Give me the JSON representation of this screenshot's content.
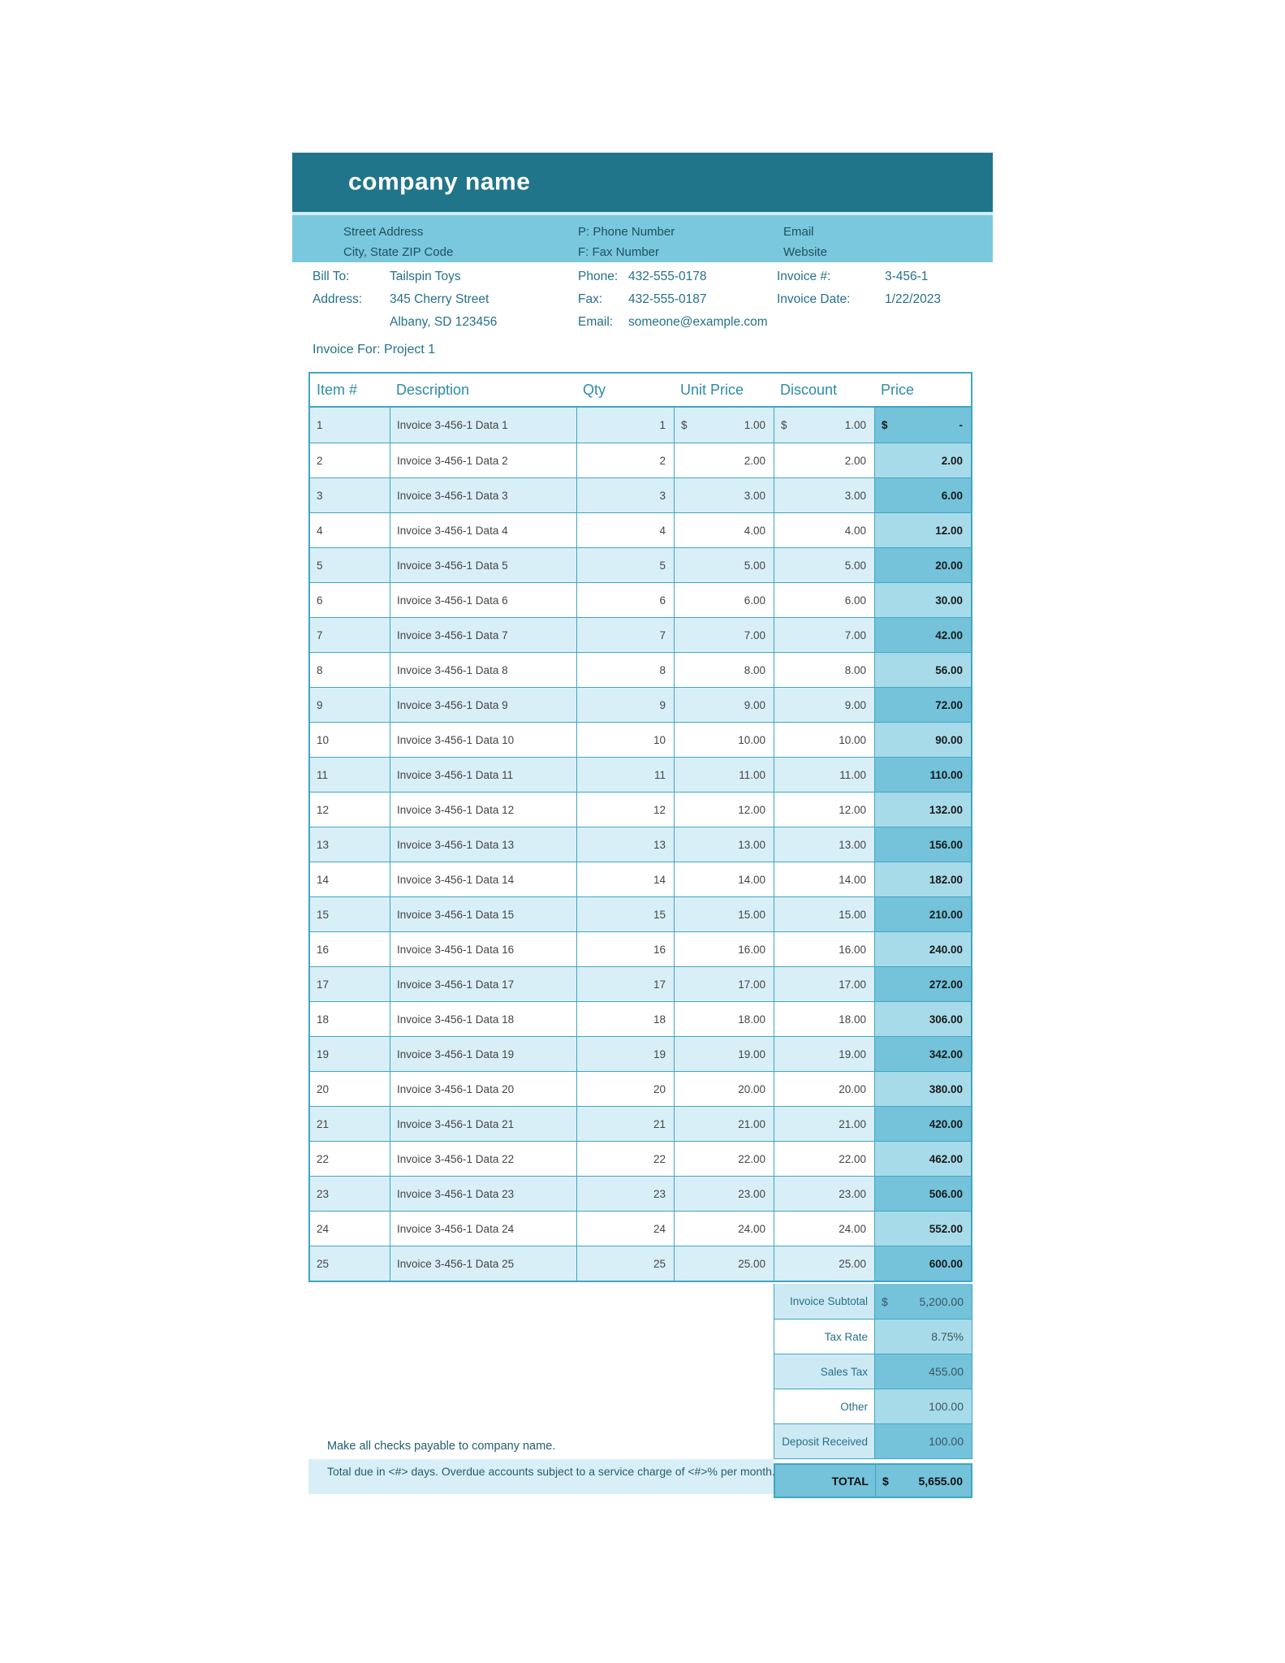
{
  "colors": {
    "header_teal": "#20758A",
    "subheader_blue": "#7AC8DD",
    "divider_light": "#CFECF4",
    "border_teal": "#41A5C4",
    "row_alt_blue": "#D9EFF7",
    "price_col_light": "#A8DBE9",
    "price_col_dark": "#74C3DB",
    "summary_label_light": "#CDEAF4",
    "label_text_teal": "#26718A",
    "column_header_teal": "#2E8CA8",
    "data_text_gray": "#454545",
    "footer_text_teal": "#235E6F"
  },
  "header": {
    "company_name": "company name"
  },
  "subheader": {
    "address_line1": "Street Address",
    "address_line2": "City, State ZIP Code",
    "phone_label": "P: Phone Number",
    "fax_label": "F: Fax Number",
    "email_label": "Email",
    "website_label": "Website"
  },
  "bill_to": {
    "bill_to_label": "Bill To:",
    "bill_to_value": "Tailspin Toys",
    "address_label": "Address:",
    "address_line1": "345 Cherry Street",
    "address_line2": "Albany, SD 123456",
    "phone_label": "Phone:",
    "phone_value": "432-555-0178",
    "fax_label": "Fax:",
    "fax_value": "432-555-0187",
    "email_label": "Email:",
    "email_value": "someone@example.com",
    "invoice_number_label": "Invoice #:",
    "invoice_number_value": "3-456-1",
    "invoice_date_label": "Invoice Date:",
    "invoice_date_value": "1/22/2023"
  },
  "invoice_for": "Invoice For: Project 1",
  "table": {
    "headers": {
      "item": "Item #",
      "description": "Description",
      "qty": "Qty",
      "unit_price": "Unit Price",
      "discount": "Discount",
      "price": "Price"
    },
    "items": [
      {
        "no": "1",
        "desc": "Invoice 3-456-1 Data 1",
        "qty": "1",
        "unit": "1.00",
        "disc": "1.00",
        "price": "-",
        "cur": "$"
      },
      {
        "no": "2",
        "desc": "Invoice 3-456-1 Data 2",
        "qty": "2",
        "unit": "2.00",
        "disc": "2.00",
        "price": "2.00",
        "cur": ""
      },
      {
        "no": "3",
        "desc": "Invoice 3-456-1 Data 3",
        "qty": "3",
        "unit": "3.00",
        "disc": "3.00",
        "price": "6.00",
        "cur": ""
      },
      {
        "no": "4",
        "desc": "Invoice 3-456-1 Data 4",
        "qty": "4",
        "unit": "4.00",
        "disc": "4.00",
        "price": "12.00",
        "cur": ""
      },
      {
        "no": "5",
        "desc": "Invoice 3-456-1 Data 5",
        "qty": "5",
        "unit": "5.00",
        "disc": "5.00",
        "price": "20.00",
        "cur": ""
      },
      {
        "no": "6",
        "desc": "Invoice 3-456-1 Data 6",
        "qty": "6",
        "unit": "6.00",
        "disc": "6.00",
        "price": "30.00",
        "cur": ""
      },
      {
        "no": "7",
        "desc": "Invoice 3-456-1 Data 7",
        "qty": "7",
        "unit": "7.00",
        "disc": "7.00",
        "price": "42.00",
        "cur": ""
      },
      {
        "no": "8",
        "desc": "Invoice 3-456-1 Data 8",
        "qty": "8",
        "unit": "8.00",
        "disc": "8.00",
        "price": "56.00",
        "cur": ""
      },
      {
        "no": "9",
        "desc": "Invoice 3-456-1 Data 9",
        "qty": "9",
        "unit": "9.00",
        "disc": "9.00",
        "price": "72.00",
        "cur": ""
      },
      {
        "no": "10",
        "desc": "Invoice 3-456-1 Data 10",
        "qty": "10",
        "unit": "10.00",
        "disc": "10.00",
        "price": "90.00",
        "cur": ""
      },
      {
        "no": "11",
        "desc": "Invoice 3-456-1 Data 11",
        "qty": "11",
        "unit": "11.00",
        "disc": "11.00",
        "price": "110.00",
        "cur": ""
      },
      {
        "no": "12",
        "desc": "Invoice 3-456-1 Data 12",
        "qty": "12",
        "unit": "12.00",
        "disc": "12.00",
        "price": "132.00",
        "cur": ""
      },
      {
        "no": "13",
        "desc": "Invoice 3-456-1 Data 13",
        "qty": "13",
        "unit": "13.00",
        "disc": "13.00",
        "price": "156.00",
        "cur": ""
      },
      {
        "no": "14",
        "desc": "Invoice 3-456-1 Data 14",
        "qty": "14",
        "unit": "14.00",
        "disc": "14.00",
        "price": "182.00",
        "cur": ""
      },
      {
        "no": "15",
        "desc": "Invoice 3-456-1 Data 15",
        "qty": "15",
        "unit": "15.00",
        "disc": "15.00",
        "price": "210.00",
        "cur": ""
      },
      {
        "no": "16",
        "desc": "Invoice 3-456-1 Data 16",
        "qty": "16",
        "unit": "16.00",
        "disc": "16.00",
        "price": "240.00",
        "cur": ""
      },
      {
        "no": "17",
        "desc": "Invoice 3-456-1 Data 17",
        "qty": "17",
        "unit": "17.00",
        "disc": "17.00",
        "price": "272.00",
        "cur": ""
      },
      {
        "no": "18",
        "desc": "Invoice 3-456-1 Data 18",
        "qty": "18",
        "unit": "18.00",
        "disc": "18.00",
        "price": "306.00",
        "cur": ""
      },
      {
        "no": "19",
        "desc": "Invoice 3-456-1 Data 19",
        "qty": "19",
        "unit": "19.00",
        "disc": "19.00",
        "price": "342.00",
        "cur": ""
      },
      {
        "no": "20",
        "desc": "Invoice 3-456-1 Data 20",
        "qty": "20",
        "unit": "20.00",
        "disc": "20.00",
        "price": "380.00",
        "cur": ""
      },
      {
        "no": "21",
        "desc": "Invoice 3-456-1 Data 21",
        "qty": "21",
        "unit": "21.00",
        "disc": "21.00",
        "price": "420.00",
        "cur": ""
      },
      {
        "no": "22",
        "desc": "Invoice 3-456-1 Data 22",
        "qty": "22",
        "unit": "22.00",
        "disc": "22.00",
        "price": "462.00",
        "cur": ""
      },
      {
        "no": "23",
        "desc": "Invoice 3-456-1 Data 23",
        "qty": "23",
        "unit": "23.00",
        "disc": "23.00",
        "price": "506.00",
        "cur": ""
      },
      {
        "no": "24",
        "desc": "Invoice 3-456-1 Data 24",
        "qty": "24",
        "unit": "24.00",
        "disc": "24.00",
        "price": "552.00",
        "cur": ""
      },
      {
        "no": "25",
        "desc": "Invoice 3-456-1 Data 25",
        "qty": "25",
        "unit": "25.00",
        "disc": "25.00",
        "price": "600.00",
        "cur": ""
      }
    ]
  },
  "summary": {
    "rows": [
      {
        "label": "Invoice Subtotal",
        "currency": "$",
        "value": "5,200.00"
      },
      {
        "label": "Tax Rate",
        "currency": "",
        "value": "8.75%"
      },
      {
        "label": "Sales Tax",
        "currency": "",
        "value": "455.00"
      },
      {
        "label": "Other",
        "currency": "",
        "value": "100.00"
      },
      {
        "label": "Deposit Received",
        "currency": "",
        "value": "100.00"
      }
    ],
    "total": {
      "label": "TOTAL",
      "currency": "$",
      "value": "5,655.00"
    }
  },
  "footer": {
    "line1": "Make all checks payable to company name.",
    "line2": "Total due in <#> days. Overdue accounts subject to a service charge of <#>% per month."
  }
}
